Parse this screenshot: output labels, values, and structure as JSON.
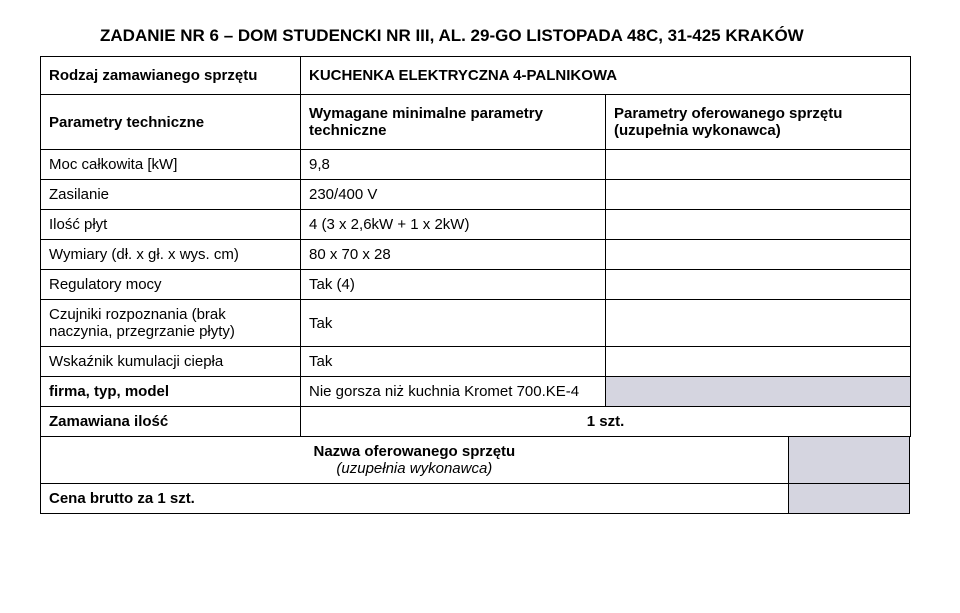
{
  "title": "ZADANIE NR 6 – DOM STUDENCKI NR III, AL. 29-GO LISTOPADA 48C, 31-425 KRAKÓW",
  "header": {
    "row1_col1": "Rodzaj zamawianego sprzętu",
    "row1_col2": "KUCHENKA ELEKTRYCZNA 4-PALNIKOWA",
    "row2_col1": "Parametry techniczne",
    "row2_col2": "Wymagane minimalne parametry techniczne",
    "row2_col3": "Parametry oferowanego sprzętu (uzupełnia wykonawca)"
  },
  "rows": [
    {
      "label": "Moc całkowita [kW]",
      "value": "9,8"
    },
    {
      "label": "Zasilanie",
      "value": "230/400 V"
    },
    {
      "label": "Ilość płyt",
      "value": "4 (3 x 2,6kW + 1 x 2kW)"
    },
    {
      "label": "Wymiary (dł. x gł. x wys. cm)",
      "value": "80 x 70 x 28"
    },
    {
      "label": "Regulatory mocy",
      "value": "Tak (4)"
    },
    {
      "label": "Czujniki rozpoznania (brak naczynia, przegrzanie płyty)",
      "value": "Tak"
    },
    {
      "label": "Wskaźnik kumulacji ciepła",
      "value": "Tak"
    }
  ],
  "model": {
    "label": "firma, typ, model",
    "value": "Nie gorsza niż kuchnia Kromet 700.KE-4"
  },
  "qty": {
    "label": "Zamawiana ilość",
    "value": "1 szt."
  },
  "footer": {
    "line1": "Nazwa oferowanego sprzętu",
    "line2": "(uzupełnia wykonawca)",
    "price": "Cena brutto za 1 szt."
  }
}
